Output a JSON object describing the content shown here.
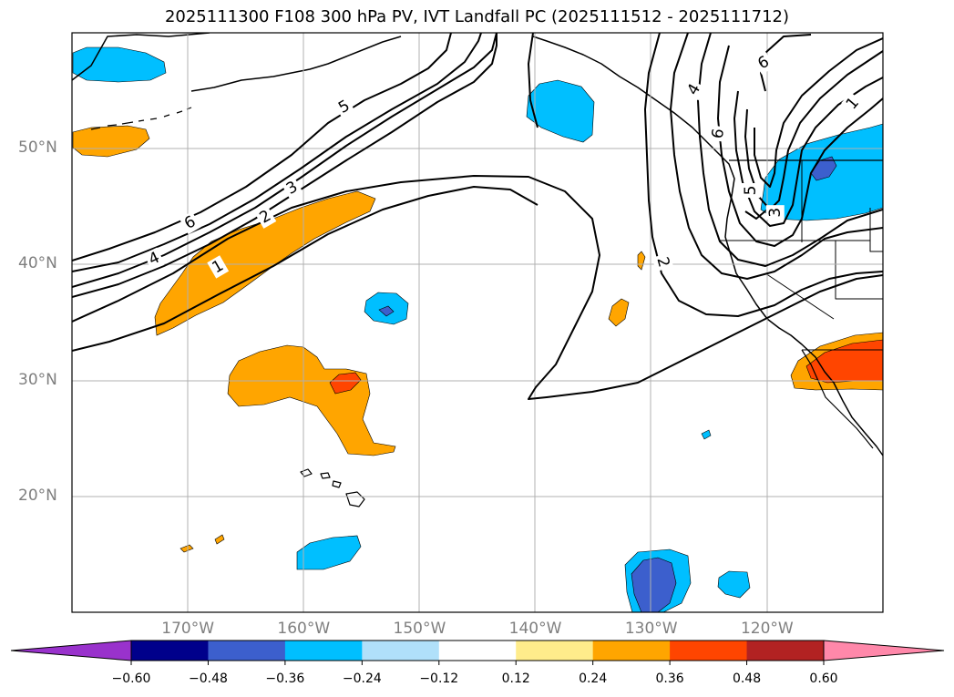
{
  "title": "2025111300 F108 300 hPa PV, IVT Landfall PC (2025111512 - 2025111712)",
  "map": {
    "projection": "cylindrical",
    "lon_range": [
      -180,
      -110
    ],
    "lat_range": [
      10,
      60
    ],
    "lat_labels": [
      {
        "lat": 50,
        "text": "50°N"
      },
      {
        "lat": 40,
        "text": "40°N"
      },
      {
        "lat": 30,
        "text": "30°N"
      },
      {
        "lat": 20,
        "text": "20°N"
      }
    ],
    "lon_labels": [
      {
        "lon": -170,
        "text": "170°W"
      },
      {
        "lon": -160,
        "text": "160°W"
      },
      {
        "lon": -150,
        "text": "150°W"
      },
      {
        "lon": -140,
        "text": "140°W"
      },
      {
        "lon": -130,
        "text": "130°W"
      },
      {
        "lon": -120,
        "text": "120°W"
      }
    ],
    "contour_labels": [
      {
        "lon": -156.5,
        "lat": 53.6,
        "text": "5",
        "rot": -30
      },
      {
        "lon": -169.8,
        "lat": 43.6,
        "text": "6",
        "rot": -30
      },
      {
        "lon": -161.0,
        "lat": 46.6,
        "text": "3",
        "rot": -30
      },
      {
        "lon": -163.3,
        "lat": 44.1,
        "text": "2",
        "rot": -30
      },
      {
        "lon": -172.9,
        "lat": 40.5,
        "text": "4",
        "rot": -25
      },
      {
        "lon": -167.4,
        "lat": 39.8,
        "text": "1",
        "rot": -30
      },
      {
        "lon": -129.0,
        "lat": 40.2,
        "text": "2",
        "rot": 75
      },
      {
        "lon": -126.3,
        "lat": 55.1,
        "text": "4",
        "rot": -60
      },
      {
        "lon": -120.3,
        "lat": 57.4,
        "text": "6",
        "rot": -30
      },
      {
        "lon": -124.2,
        "lat": 51.3,
        "text": "6",
        "rot": -80
      },
      {
        "lon": -121.4,
        "lat": 46.4,
        "text": "5",
        "rot": -90
      },
      {
        "lon": -119.3,
        "lat": 44.5,
        "text": "3",
        "rot": -90
      },
      {
        "lon": -112.6,
        "lat": 53.9,
        "text": "1",
        "rot": -50
      }
    ]
  },
  "colorbar": {
    "ticks": [
      "−0.60",
      "−0.48",
      "−0.36",
      "−0.24",
      "−0.12",
      "0.12",
      "0.24",
      "0.36",
      "0.48",
      "0.60"
    ],
    "colors": [
      "#9932cc",
      "#00008b",
      "#3c5fcd",
      "#00bfff",
      "#b0e0fa",
      "#ffffff",
      "#ffec8b",
      "#ffa500",
      "#ff4500",
      "#b22222",
      "#ff88aa"
    ]
  }
}
